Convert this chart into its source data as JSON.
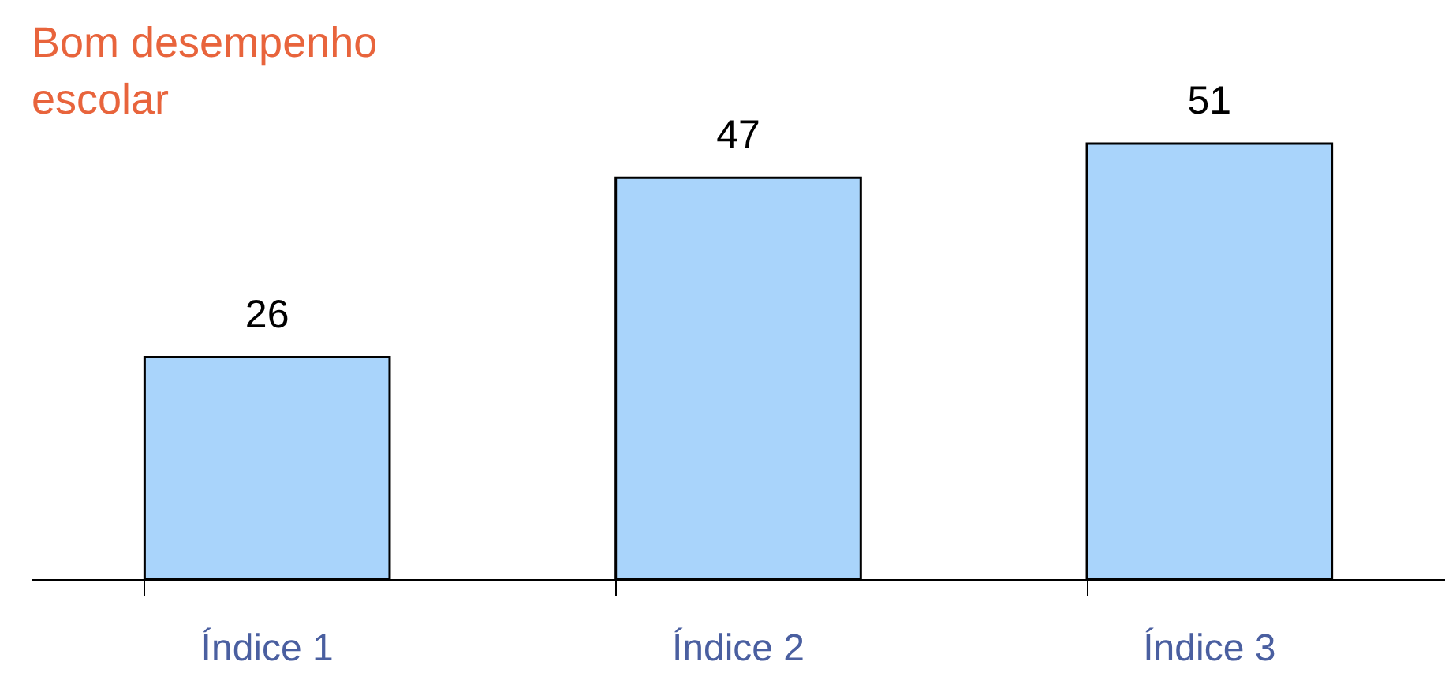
{
  "chart_data": {
    "type": "bar",
    "title": "Bom desempenho\nescolar",
    "categories": [
      "Índice 1",
      "Índice 2",
      "Índice 3"
    ],
    "values": [
      26,
      47,
      51
    ],
    "color": "#a9d4fb",
    "data_labels": true,
    "grid": false
  }
}
